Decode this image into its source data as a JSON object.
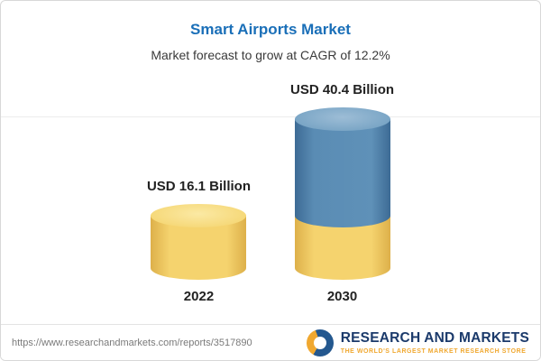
{
  "header": {
    "title": "Smart Airports Market",
    "subtitle": "Market forecast to grow at CAGR of 12.2%"
  },
  "chart_data": {
    "type": "bar",
    "variant": "3d-cylinder",
    "title": "Smart Airports Market",
    "subtitle": "Market forecast to grow at CAGR of 12.2%",
    "categories": [
      "2022",
      "2030"
    ],
    "values": [
      16.1,
      40.4
    ],
    "unit": "USD Billion",
    "value_labels": [
      "USD 16.1 Billion",
      "USD 40.4 Billion"
    ],
    "cagr_percent": 12.2,
    "ylim": [
      0,
      45
    ],
    "legend": "none",
    "grid": "off",
    "colors": {
      "bar_2022": "#f5d36e",
      "bar_2030_top": "#5a8cb4",
      "bar_2030_base": "#f5d36e"
    }
  },
  "footer": {
    "url": "https://www.researchandmarkets.com/reports/3517890",
    "brand": "RESEARCH AND MARKETS",
    "tagline": "THE WORLD'S LARGEST MARKET RESEARCH STORE"
  },
  "colors": {
    "title_blue": "#1a6fb8",
    "brand_navy": "#1b3a6b",
    "accent_gold": "#f0a830"
  }
}
